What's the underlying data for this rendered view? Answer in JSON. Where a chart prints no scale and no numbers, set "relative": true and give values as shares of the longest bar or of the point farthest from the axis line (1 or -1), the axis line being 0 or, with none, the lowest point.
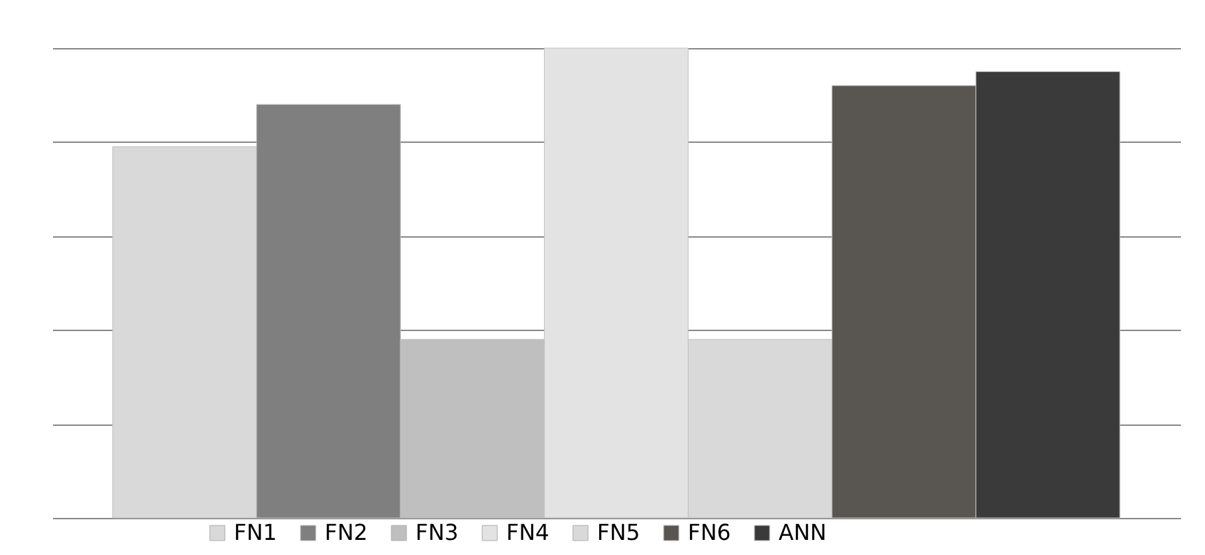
{
  "chart_data": {
    "type": "bar",
    "relative": true,
    "categories": [
      null
    ],
    "grid": "y",
    "legend": "bottom",
    "series": [
      {
        "name": "FN1",
        "color": "#d9d9d9",
        "values": [
          0.79
        ]
      },
      {
        "name": "FN2",
        "color": "#7f7f7f",
        "values": [
          0.88
        ]
      },
      {
        "name": "FN3",
        "color": "#bfbfbf",
        "values": [
          0.38
        ]
      },
      {
        "name": "FN4",
        "color": "#e3e3e3",
        "values": [
          1
        ]
      },
      {
        "name": "FN5",
        "color": "#d9d9d9",
        "values": [
          0.38
        ]
      },
      {
        "name": "FN6",
        "color": "#595550",
        "values": [
          0.92
        ]
      },
      {
        "name": "ANN",
        "color": "#3a3a3a",
        "values": [
          0.95
        ]
      }
    ]
  }
}
